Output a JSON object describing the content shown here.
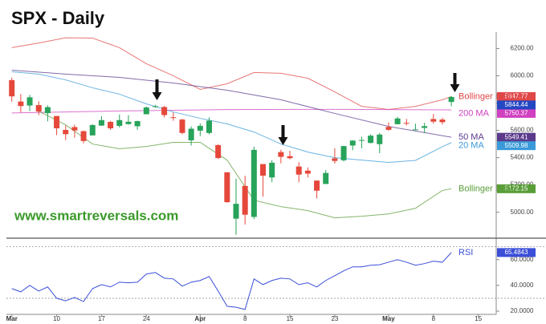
{
  "chart_data": [
    {
      "type": "candlestick",
      "title": "SPX - Daily",
      "watermark": "www.smartreversals.com",
      "x": [
        0,
        1,
        2,
        3,
        4,
        5,
        6,
        7,
        8,
        9,
        10,
        11,
        12,
        13,
        14,
        15,
        16,
        17,
        18,
        19,
        20,
        21,
        22,
        23,
        24,
        25,
        26,
        27,
        28,
        29,
        30,
        31,
        32,
        33,
        34,
        35,
        36,
        37,
        38,
        39,
        40,
        41,
        42,
        43,
        44,
        45,
        46,
        47,
        48,
        49
      ],
      "open": [
        5968,
        5811,
        5782,
        5785,
        5726,
        5705,
        5603,
        5624,
        5594,
        5563,
        5635,
        5662,
        5633,
        5646,
        5630,
        5718,
        5775,
        5771,
        5696,
        5679,
        5527,
        5598,
        5581,
        5492,
        5293,
        4953,
        5193,
        4966,
        5353,
        5255,
        5441,
        5411,
        5335,
        5305,
        5232,
        5207,
        5395,
        5381,
        5489,
        5529,
        5508,
        5499,
        5625,
        5645,
        5655,
        5606,
        5618,
        5683,
        5679,
        5808
      ],
      "high": [
        5986,
        5866,
        5860,
        5813,
        5783,
        5705,
        5636,
        5642,
        5598,
        5645,
        5703,
        5669,
        5716,
        5711,
        5670,
        5775,
        5787,
        5780,
        5732,
        5685,
        5629,
        5650,
        5695,
        5500,
        5293,
        5246,
        5267,
        5481,
        5353,
        5381,
        5459,
        5450,
        5367,
        5328,
        5232,
        5309,
        5469,
        5486,
        5528,
        5553,
        5571,
        5581,
        5659,
        5700,
        5684,
        5649,
        5655,
        5720,
        5692,
        5851
      ],
      "low": [
        5810,
        5732,
        5742,
        5711,
        5666,
        5565,
        5528,
        5546,
        5505,
        5563,
        5632,
        5603,
        5621,
        5641,
        5604,
        5718,
        5765,
        5694,
        5670,
        5572,
        5489,
        5558,
        5571,
        5390,
        5069,
        4835,
        4910,
        4950,
        5115,
        5220,
        5358,
        5387,
        5220,
        5255,
        5102,
        5207,
        5356,
        5371,
        5455,
        5468,
        5505,
        5433,
        5597,
        5644,
        5635,
        5602,
        5579,
        5649,
        5643,
        5777
      ],
      "close": [
        5849,
        5778,
        5842,
        5738,
        5770,
        5615,
        5572,
        5599,
        5522,
        5639,
        5675,
        5615,
        5675,
        5663,
        5668,
        5768,
        5777,
        5712,
        5693,
        5581,
        5612,
        5633,
        5671,
        5397,
        5074,
        5062,
        4982,
        5457,
        5268,
        5363,
        5406,
        5396,
        5276,
        5283,
        5158,
        5288,
        5376,
        5485,
        5525,
        5529,
        5561,
        5569,
        5604,
        5687,
        5650,
        5607,
        5631,
        5664,
        5660,
        5844.44
      ],
      "up_color": "#27a35a",
      "down_color": "#e5483a",
      "close_label_color": "#2447c4",
      "xlim": [
        -0.6,
        54
      ],
      "ylim": [
        4810,
        6320
      ],
      "yticks": [
        {
          "value": 5000,
          "label": "5000.00"
        },
        {
          "value": 5200,
          "label": "5200.00"
        },
        {
          "value": 5400,
          "label": "5400.00"
        },
        {
          "value": 5600,
          "label": "5600.00"
        },
        {
          "value": 5800,
          "label": "5800.00"
        },
        {
          "value": 6000,
          "label": "6000.00"
        },
        {
          "value": 6200,
          "label": "6200.00"
        }
      ],
      "series": [
        {
          "name": "Bollinger High",
          "color": "#e04848",
          "x": [
            0,
            3,
            6,
            9,
            12,
            15,
            18,
            21,
            24,
            27,
            30,
            33,
            36,
            39,
            42,
            45,
            48,
            49
          ],
          "values": [
            6206,
            6240,
            6278,
            6276,
            6206,
            6088,
            6000,
            5900,
            5941,
            6024,
            6018,
            5982,
            5882,
            5776,
            5753,
            5776,
            5824,
            5847.77
          ]
        },
        {
          "name": "200 MA",
          "color": "#d040c0",
          "x": [
            0,
            12,
            24,
            36,
            49
          ],
          "values": [
            5727,
            5742,
            5752,
            5754,
            5750.37
          ]
        },
        {
          "name": "50 MA",
          "color": "#5b3a8c",
          "x": [
            0,
            6,
            12,
            18,
            24,
            30,
            36,
            42,
            49
          ],
          "values": [
            6041,
            6012,
            5988,
            5947,
            5894,
            5824,
            5724,
            5629,
            5549.41
          ]
        },
        {
          "name": "20 MA",
          "color": "#3a9ad9",
          "x": [
            0,
            3,
            6,
            9,
            12,
            15,
            18,
            21,
            24,
            27,
            30,
            33,
            36,
            39,
            42,
            45,
            48,
            49
          ],
          "values": [
            6029,
            6012,
            5970,
            5912,
            5865,
            5794,
            5735,
            5688,
            5647,
            5588,
            5500,
            5441,
            5400,
            5382,
            5365,
            5380,
            5480,
            5509.98
          ]
        },
        {
          "name": "Bollinger Low",
          "color": "#5a9e3a",
          "x": [
            3,
            6,
            9,
            12,
            15,
            18,
            21,
            24,
            27,
            30,
            33,
            36,
            39,
            42,
            45,
            48,
            49
          ],
          "values": [
            5740,
            5640,
            5500,
            5465,
            5482,
            5512,
            5512,
            5382,
            5088,
            5041,
            5012,
            4959,
            4971,
            4988,
            5029,
            5160,
            5172.15
          ]
        }
      ]
    },
    {
      "type": "line",
      "x": [
        0,
        1,
        2,
        3,
        4,
        5,
        6,
        7,
        8,
        9,
        10,
        11,
        12,
        13,
        14,
        15,
        16,
        17,
        18,
        19,
        20,
        21,
        22,
        23,
        24,
        25,
        26,
        27,
        28,
        29,
        30,
        31,
        32,
        33,
        34,
        35,
        36,
        37,
        38,
        39,
        40,
        41,
        42,
        43,
        44,
        45,
        46,
        47,
        48,
        49
      ],
      "xlim": [
        -0.6,
        54
      ],
      "ylim": [
        17.5,
        76
      ],
      "yticks": [
        {
          "value": 20,
          "label": "20.0000"
        },
        {
          "value": 40,
          "label": "40.0000"
        },
        {
          "value": 60,
          "label": "60.0000"
        }
      ],
      "hlines": [
        30,
        70
      ],
      "xticks": [
        {
          "value": 0,
          "label": "Mar"
        },
        {
          "value": 5,
          "label": "10"
        },
        {
          "value": 10,
          "label": "17"
        },
        {
          "value": 15,
          "label": "24"
        },
        {
          "value": 21,
          "label": "Apr"
        },
        {
          "value": 26,
          "label": "8"
        },
        {
          "value": 31,
          "label": "15"
        },
        {
          "value": 36,
          "label": "23"
        },
        {
          "value": 42,
          "label": "May"
        },
        {
          "value": 47,
          "label": "8"
        },
        {
          "value": 52,
          "label": "15"
        }
      ],
      "series": [
        {
          "name": "RSI",
          "color": "#3b4fd8",
          "values": [
            37.5,
            35,
            40,
            35.6,
            38.8,
            30,
            28,
            30.6,
            27.5,
            37.5,
            40.6,
            38.8,
            42.5,
            42,
            42.5,
            48.8,
            50,
            45.6,
            45,
            39.4,
            42.5,
            43.8,
            46.9,
            35.6,
            23.8,
            23,
            21.3,
            45,
            40.6,
            43.8,
            45.6,
            45,
            40.6,
            42,
            38.8,
            43.8,
            47.5,
            51.3,
            54.4,
            54.4,
            55.6,
            56,
            58,
            60,
            58,
            55.6,
            56.9,
            58.8,
            58,
            65.4843
          ]
        }
      ]
    }
  ]
}
